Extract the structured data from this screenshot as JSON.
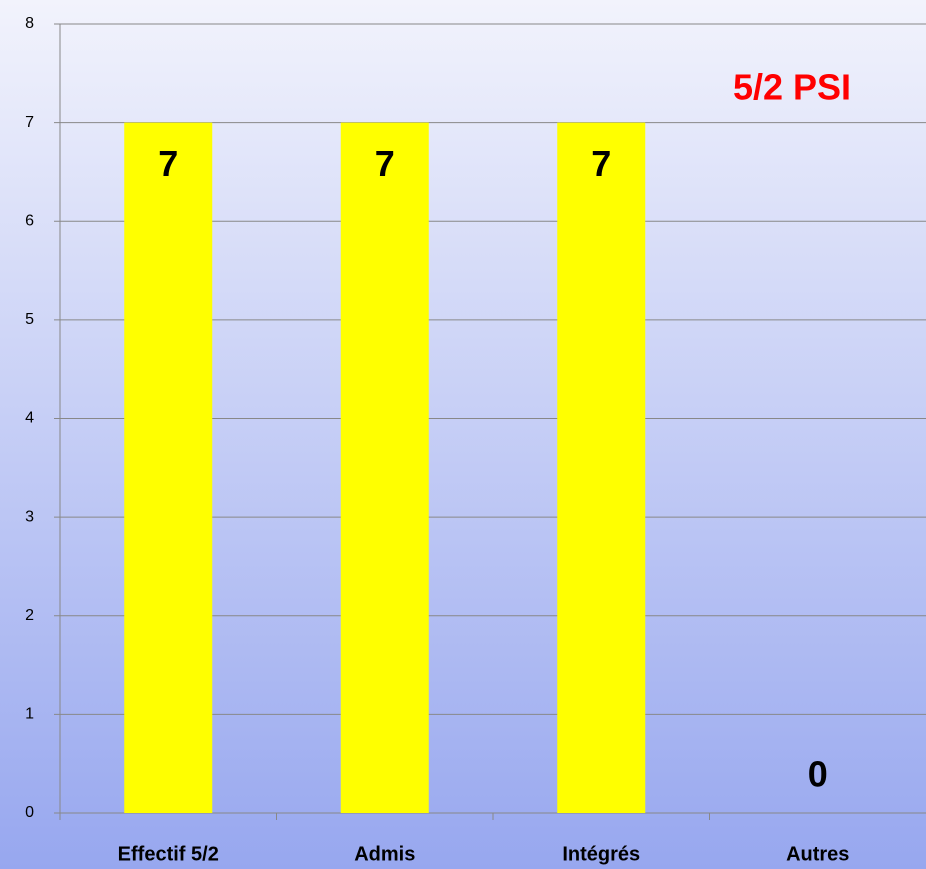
{
  "chart_data": {
    "type": "bar",
    "title": "5/2 PSI",
    "title_color": "#ff0000",
    "categories": [
      "Effectif 5/2",
      "Admis",
      "Intégrés",
      "Autres"
    ],
    "values": [
      7,
      7,
      7,
      0
    ],
    "color": "#ffff00",
    "ylim": [
      0,
      8
    ],
    "yticks": [
      0,
      1,
      2,
      3,
      4,
      5,
      6,
      7,
      8
    ],
    "grid": true
  }
}
